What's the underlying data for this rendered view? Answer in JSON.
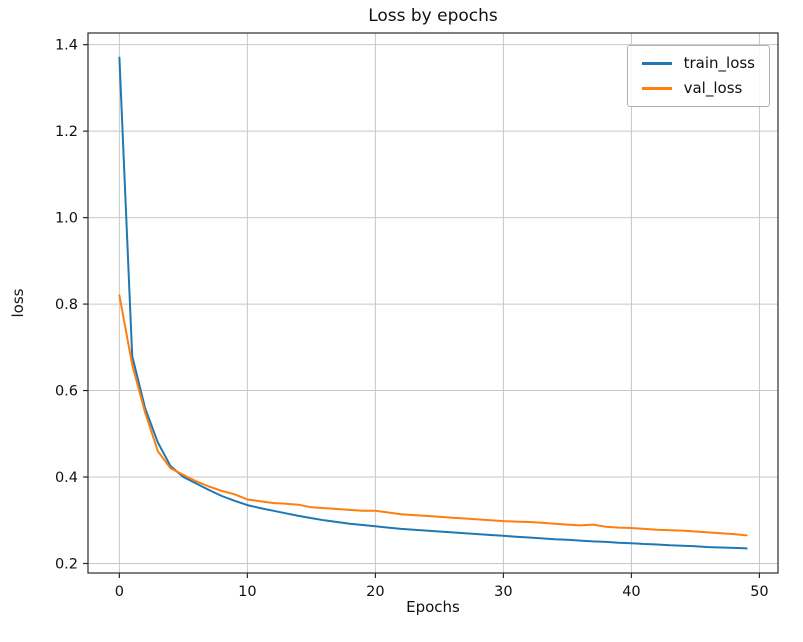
{
  "chart_data": {
    "type": "line",
    "title": "Loss by epochs",
    "xlabel": "Epochs",
    "ylabel": "loss",
    "grid": true,
    "legend_position": "upper right",
    "xlim": [
      -2.45,
      51.45
    ],
    "ylim": [
      0.178,
      1.427
    ],
    "xticks": [
      0,
      10,
      20,
      30,
      40,
      50
    ],
    "xticklabels": [
      "0",
      "10",
      "20",
      "30",
      "40",
      "50"
    ],
    "yticks": [
      0.2,
      0.4,
      0.6,
      0.8,
      1.0,
      1.2,
      1.4
    ],
    "yticklabels": [
      "0.2",
      "0.4",
      "0.6",
      "0.8",
      "1.0",
      "1.2",
      "1.4"
    ],
    "grid_color": "#c7c7c7",
    "spine_color": "#2b2b2b",
    "text_color": "#111111",
    "x": [
      0,
      1,
      2,
      3,
      4,
      5,
      6,
      7,
      8,
      9,
      10,
      11,
      12,
      13,
      14,
      15,
      16,
      17,
      18,
      19,
      20,
      21,
      22,
      23,
      24,
      25,
      26,
      27,
      28,
      29,
      30,
      31,
      32,
      33,
      34,
      35,
      36,
      37,
      38,
      39,
      40,
      41,
      42,
      43,
      44,
      45,
      46,
      47,
      48,
      49
    ],
    "series": [
      {
        "name": "train_loss",
        "color": "#1f77b4",
        "values": [
          1.37,
          0.68,
          0.56,
          0.48,
          0.425,
          0.4,
          0.385,
          0.37,
          0.356,
          0.345,
          0.335,
          0.328,
          0.322,
          0.316,
          0.31,
          0.305,
          0.3,
          0.296,
          0.292,
          0.289,
          0.286,
          0.283,
          0.28,
          0.278,
          0.276,
          0.274,
          0.272,
          0.27,
          0.268,
          0.266,
          0.264,
          0.262,
          0.26,
          0.258,
          0.256,
          0.255,
          0.253,
          0.251,
          0.25,
          0.248,
          0.247,
          0.245,
          0.244,
          0.242,
          0.241,
          0.24,
          0.238,
          0.237,
          0.236,
          0.235
        ]
      },
      {
        "name": "val_loss",
        "color": "#ff7f0e",
        "values": [
          0.82,
          0.66,
          0.55,
          0.46,
          0.42,
          0.405,
          0.39,
          0.378,
          0.368,
          0.36,
          0.348,
          0.344,
          0.34,
          0.338,
          0.336,
          0.33,
          0.328,
          0.326,
          0.324,
          0.322,
          0.322,
          0.318,
          0.314,
          0.312,
          0.31,
          0.308,
          0.306,
          0.304,
          0.302,
          0.3,
          0.298,
          0.297,
          0.296,
          0.294,
          0.292,
          0.29,
          0.288,
          0.29,
          0.285,
          0.283,
          0.282,
          0.28,
          0.278,
          0.277,
          0.276,
          0.274,
          0.272,
          0.27,
          0.268,
          0.265
        ]
      }
    ]
  }
}
